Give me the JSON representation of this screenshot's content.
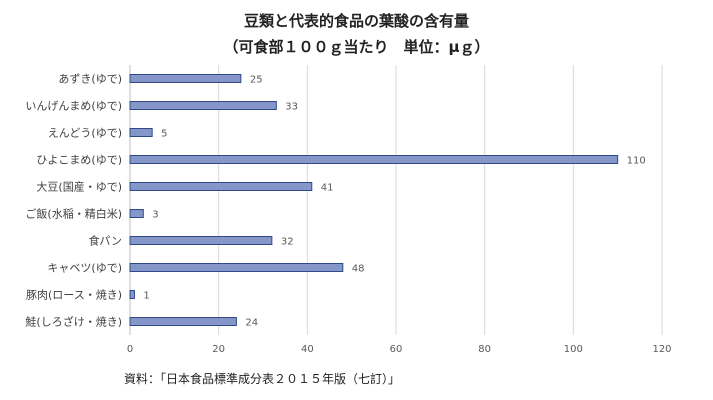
{
  "chart_data": {
    "type": "bar",
    "orientation": "horizontal",
    "title": "豆類と代表的食品の葉酸の含有量",
    "subtitle": "（可食部１００ｇ当たり　単位：μｇ）",
    "categories": [
      "あずき(ゆで)",
      "いんげんまめ(ゆで)",
      "えんどう(ゆで)",
      "ひよこまめ(ゆで)",
      "大豆(国産・ゆで)",
      "ご飯(水稲・精白米)",
      "食パン",
      "キャベツ(ゆで)",
      "豚肉(ロース・焼き)",
      "鮭(しろざけ・焼き)"
    ],
    "values": [
      25,
      33,
      5,
      110,
      41,
      3,
      32,
      48,
      1,
      24
    ],
    "xlim": [
      0,
      120
    ],
    "xticks": [
      0,
      20,
      40,
      60,
      80,
      100,
      120
    ],
    "grid": true,
    "bar_color": "#8497c8",
    "bar_border": "#2f4a8a",
    "source": "資料：「日本食品標準成分表２０１５年版（七訂）」"
  }
}
